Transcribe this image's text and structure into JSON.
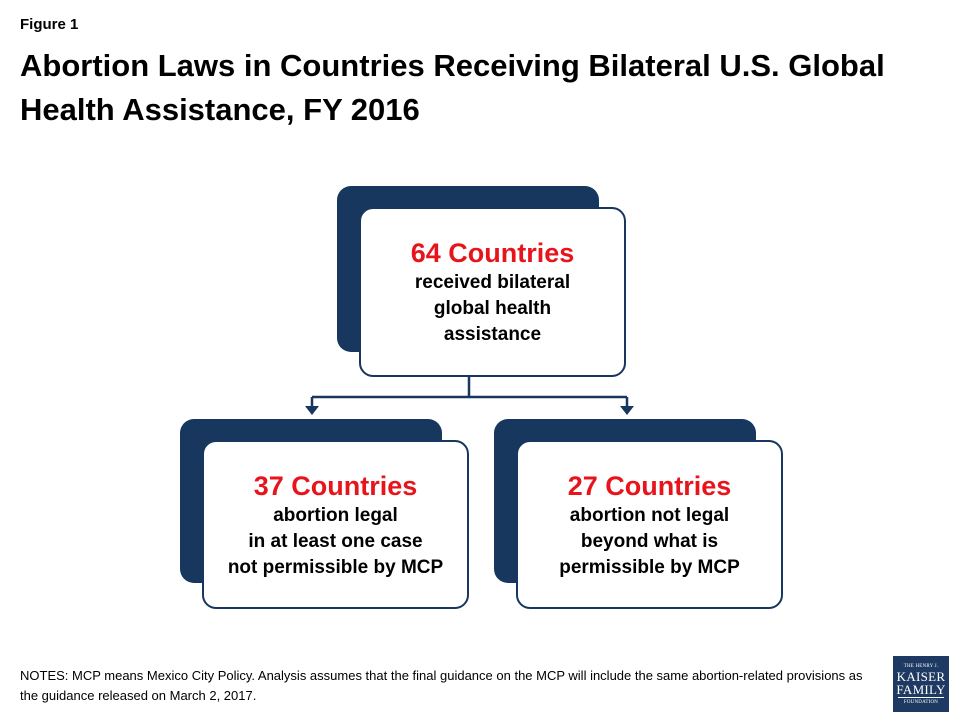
{
  "figure_label": "Figure 1",
  "title": "Abortion Laws in Countries Receiving Bilateral U.S. Global Health Assistance, FY 2016",
  "top_box": {
    "count": "64 Countries",
    "description": "received bilateral\nglobal health\nassistance"
  },
  "left_box": {
    "count": "37 Countries",
    "description": "abortion legal\nin at least one case\nnot permissible by MCP"
  },
  "right_box": {
    "count": "27 Countries",
    "description": "abortion not legal\nbeyond what is\npermissible by MCP"
  },
  "notes": "NOTES: MCP means Mexico City Policy. Analysis assumes that the final guidance on the MCP will include the same abortion-related provisions as the guidance released on March 2, 2017.",
  "logo": {
    "line1": "THE HENRY J.",
    "line2": "KAISER",
    "line3": "FAMILY",
    "line4": "FOUNDATION"
  },
  "colors": {
    "navy": "#17375e",
    "count_red": "#e8141c"
  }
}
